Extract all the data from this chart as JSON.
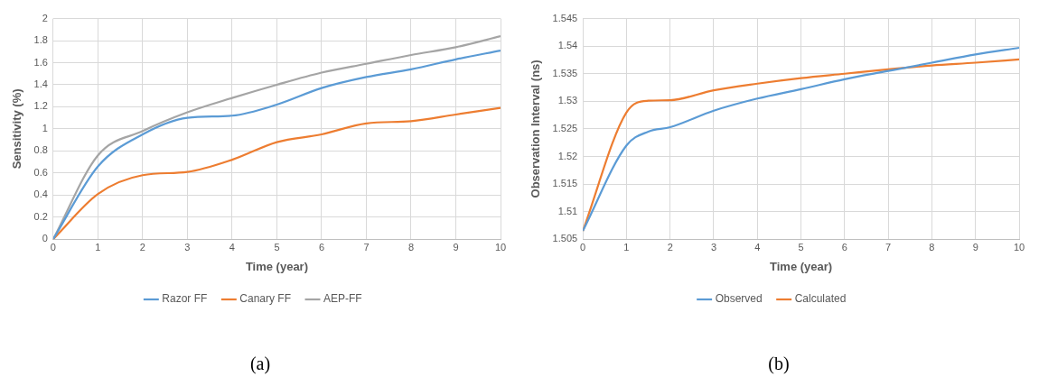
{
  "chart_data": [
    {
      "type": "line",
      "xlabel": "Time (year)",
      "ylabel": "Sensitivity (%)",
      "x": [
        0,
        1,
        2,
        3,
        4,
        5,
        6,
        7,
        8,
        9,
        10
      ],
      "xlim": [
        0,
        10
      ],
      "xticks": [
        0,
        1,
        2,
        3,
        4,
        5,
        6,
        7,
        8,
        9,
        10
      ],
      "ylim": [
        0,
        2
      ],
      "yticks": [
        0,
        0.2,
        0.4,
        0.6,
        0.8,
        1,
        1.2,
        1.4,
        1.6,
        1.8,
        2
      ],
      "grid": true,
      "legend": "bottom",
      "marker": "none",
      "line_style": "solid",
      "annotations": [
        "(a)"
      ],
      "series": [
        {
          "name": "Razor FF",
          "color": "#5b9bd5",
          "values": [
            0,
            0.66,
            0.95,
            1.1,
            1.12,
            1.22,
            1.37,
            1.47,
            1.54,
            1.63,
            1.71
          ]
        },
        {
          "name": "Canary FF",
          "color": "#ed7d31",
          "values": [
            0,
            0.41,
            0.58,
            0.61,
            0.72,
            0.88,
            0.95,
            1.05,
            1.07,
            1.13,
            1.19
          ]
        },
        {
          "name": "AEP-FF",
          "color": "#a5a5a5",
          "values": [
            0,
            0.76,
            0.98,
            1.15,
            1.28,
            1.4,
            1.51,
            1.59,
            1.67,
            1.74,
            1.84
          ]
        }
      ]
    },
    {
      "type": "line",
      "xlabel": "Time (year)",
      "ylabel": "Observation Interval (ns)",
      "x": [
        0,
        1,
        1.5,
        2,
        3,
        4,
        5,
        6,
        7,
        8,
        9,
        10
      ],
      "xlim": [
        0,
        10
      ],
      "xticks": [
        0,
        1,
        2,
        3,
        4,
        5,
        6,
        7,
        8,
        9,
        10
      ],
      "ylim": [
        1.505,
        1.545
      ],
      "yticks": [
        1.505,
        1.51,
        1.515,
        1.52,
        1.525,
        1.53,
        1.535,
        1.54,
        1.545
      ],
      "grid": true,
      "legend": "bottom",
      "marker": "none",
      "line_style": "solid",
      "annotations": [
        "(b)"
      ],
      "series": [
        {
          "name": "Observed",
          "color": "#5b9bd5",
          "values": [
            1.5065,
            1.522,
            1.5245,
            1.5253,
            1.5283,
            1.5305,
            1.5322,
            1.534,
            1.5355,
            1.537,
            1.5385,
            1.5397
          ]
        },
        {
          "name": "Calculated",
          "color": "#ed7d31",
          "values": [
            1.5065,
            1.528,
            1.5301,
            1.5302,
            1.532,
            1.5332,
            1.5342,
            1.535,
            1.5358,
            1.5365,
            1.537,
            1.5376
          ]
        }
      ]
    }
  ]
}
